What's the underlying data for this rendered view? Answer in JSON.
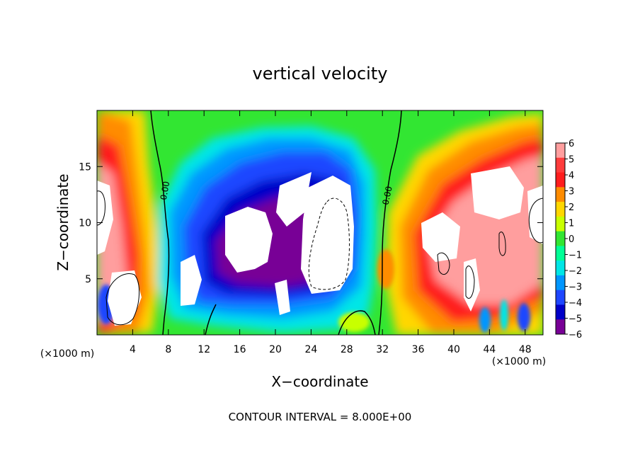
{
  "chart_data": {
    "type": "heatmap",
    "title": "vertical velocity",
    "xlabel": "X−coordinate",
    "ylabel": "Z−coordinate",
    "x_unit": "(×1000 m)",
    "y_unit": "(×1000 m)",
    "xlim": [
      0,
      50
    ],
    "ylim": [
      0,
      20
    ],
    "x_ticks": [
      4,
      8,
      12,
      16,
      20,
      24,
      28,
      32,
      36,
      40,
      44,
      48
    ],
    "y_ticks": [
      5,
      10,
      15
    ],
    "colorbar": {
      "min": -6,
      "max": 6,
      "ticks": [
        6,
        5,
        4,
        3,
        2,
        1,
        0,
        -1,
        -2,
        -3,
        -4,
        -5,
        -6
      ],
      "tick_labels": [
        "6",
        "5",
        "4",
        "3",
        "2",
        "1",
        "0",
        "−1",
        "−2",
        "−3",
        "−4",
        "−5",
        "−6"
      ],
      "colors": [
        "#ff9e9e",
        "#ff3c3c",
        "#ff1e1e",
        "#ff8c00",
        "#ffd700",
        "#c8ff00",
        "#32e632",
        "#00ff96",
        "#00e6e6",
        "#0096ff",
        "#1e46ff",
        "#0000c8",
        "#780096"
      ],
      "out_of_range": "white"
    },
    "contours": [
      {
        "value": 0,
        "label": "0.00",
        "style": "solid"
      },
      {
        "value": 0,
        "label": "0.00",
        "style": "solid"
      },
      {
        "value": 8,
        "style": "solid"
      },
      {
        "value": -8,
        "style": "dashed"
      }
    ],
    "footer": "CONTOUR INTERVAL = 8.000E+00"
  }
}
